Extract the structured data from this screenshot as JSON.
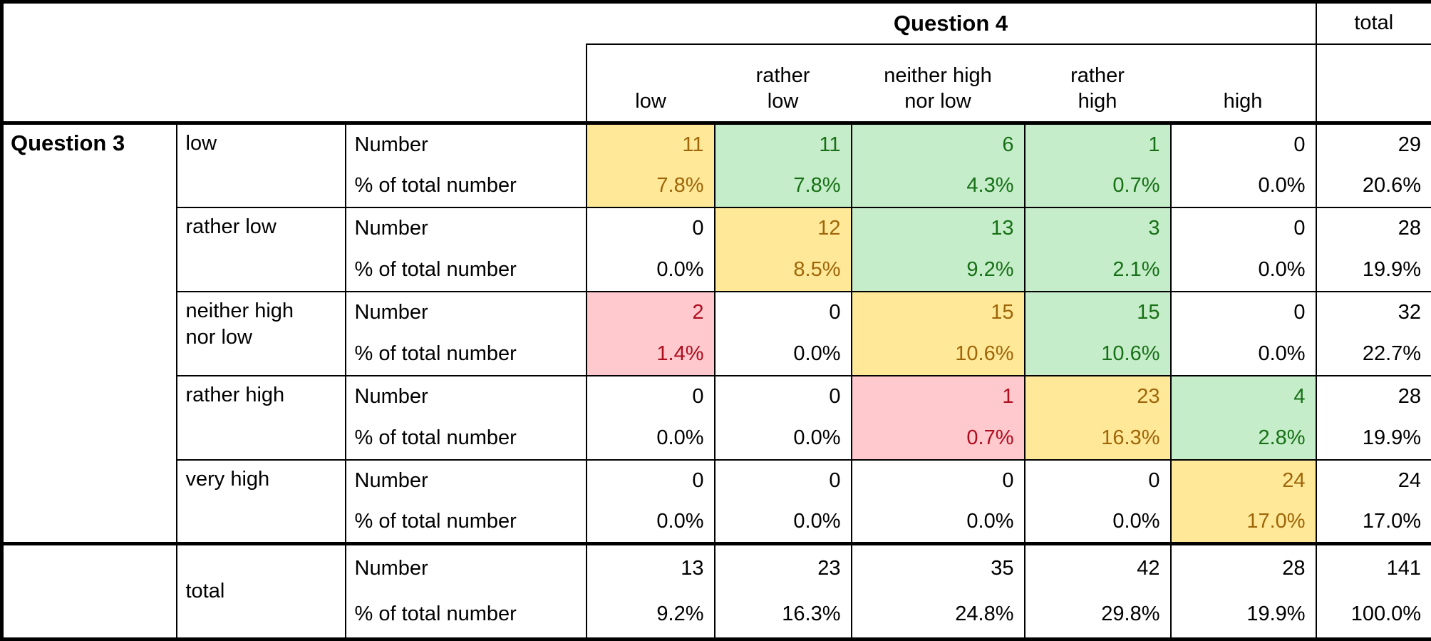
{
  "table": {
    "corner_label": "Question 3",
    "col_group_label": "Question 4",
    "total_col_label": "total",
    "col_headers": [
      "low",
      "rather\nlow",
      "neither high\nnor low",
      "rather\nhigh",
      "high"
    ],
    "measure_labels": {
      "number": "Number",
      "percent": "% of total number"
    },
    "total_row_label": "total",
    "colors": {
      "diagonal_bg": "#ffe999",
      "diagonal_text": "#9e6509",
      "near_bg": "#c6edc9",
      "near_text": "#177017",
      "mismatch_bg": "#ffc9ce",
      "mismatch_text": "#ae0d1e",
      "border": "#000000"
    },
    "rows": [
      {
        "label": "low",
        "numbers": [
          "11",
          "11",
          "6",
          "1",
          "0",
          "29"
        ],
        "percents": [
          "7.8%",
          "7.8%",
          "4.3%",
          "0.7%",
          "0.0%",
          "20.6%"
        ],
        "cell_styles": [
          "diag",
          "agree",
          "agree",
          "agree",
          "plain",
          "plain"
        ]
      },
      {
        "label": "rather low",
        "numbers": [
          "0",
          "12",
          "13",
          "3",
          "0",
          "28"
        ],
        "percents": [
          "0.0%",
          "8.5%",
          "9.2%",
          "2.1%",
          "0.0%",
          "19.9%"
        ],
        "cell_styles": [
          "plain",
          "diag",
          "agree",
          "agree",
          "plain",
          "plain"
        ]
      },
      {
        "label": "neither high\nnor low",
        "numbers": [
          "2",
          "0",
          "15",
          "15",
          "0",
          "32"
        ],
        "percents": [
          "1.4%",
          "0.0%",
          "10.6%",
          "10.6%",
          "0.0%",
          "22.7%"
        ],
        "cell_styles": [
          "off",
          "plain",
          "diag",
          "agree",
          "plain",
          "plain"
        ]
      },
      {
        "label": "rather high",
        "numbers": [
          "0",
          "0",
          "1",
          "23",
          "4",
          "28"
        ],
        "percents": [
          "0.0%",
          "0.0%",
          "0.7%",
          "16.3%",
          "2.8%",
          "19.9%"
        ],
        "cell_styles": [
          "plain",
          "plain",
          "off",
          "diag",
          "agree",
          "plain"
        ]
      },
      {
        "label": "very high",
        "numbers": [
          "0",
          "0",
          "0",
          "0",
          "24",
          "24"
        ],
        "percents": [
          "0.0%",
          "0.0%",
          "0.0%",
          "0.0%",
          "17.0%",
          "17.0%"
        ],
        "cell_styles": [
          "plain",
          "plain",
          "plain",
          "plain",
          "diag",
          "plain"
        ]
      }
    ],
    "total_row": {
      "numbers": [
        "13",
        "23",
        "35",
        "42",
        "28",
        "141"
      ],
      "percents": [
        "9.2%",
        "16.3%",
        "24.8%",
        "29.8%",
        "19.9%",
        "100.0%"
      ]
    }
  },
  "chart_data": {
    "type": "table",
    "row_variable": "Question 3",
    "col_variable": "Question 4",
    "row_categories": [
      "low",
      "rather low",
      "neither high nor low",
      "rather high",
      "very high"
    ],
    "col_categories": [
      "low",
      "rather low",
      "neither high nor low",
      "rather high",
      "high"
    ],
    "measures": [
      "Number",
      "% of total number"
    ],
    "counts": [
      [
        11,
        11,
        6,
        1,
        0
      ],
      [
        0,
        12,
        13,
        3,
        0
      ],
      [
        2,
        0,
        15,
        15,
        0
      ],
      [
        0,
        0,
        1,
        23,
        4
      ],
      [
        0,
        0,
        0,
        0,
        24
      ]
    ],
    "percent_of_total": [
      [
        7.8,
        7.8,
        4.3,
        0.7,
        0.0
      ],
      [
        0.0,
        8.5,
        9.2,
        2.1,
        0.0
      ],
      [
        1.4,
        0.0,
        10.6,
        10.6,
        0.0
      ],
      [
        0.0,
        0.0,
        0.7,
        16.3,
        2.8
      ],
      [
        0.0,
        0.0,
        0.0,
        0.0,
        17.0
      ]
    ],
    "row_totals": {
      "counts": [
        29,
        28,
        32,
        28,
        24
      ],
      "percents": [
        20.6,
        19.9,
        22.7,
        19.9,
        17.0
      ]
    },
    "col_totals": {
      "counts": [
        13,
        23,
        35,
        42,
        28
      ],
      "percents": [
        9.2,
        16.3,
        24.8,
        29.8,
        19.9
      ]
    },
    "grand_total": {
      "count": 141,
      "percent": 100.0
    }
  }
}
